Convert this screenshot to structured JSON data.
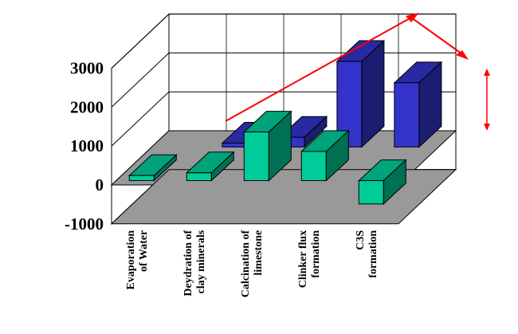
{
  "chart_data": {
    "type": "bar",
    "style": "3d-stacked",
    "categories": [
      [
        "Evaporation",
        "of Water"
      ],
      [
        "Deydration of",
        "clay minerals"
      ],
      [
        "Calcination of",
        "limestone"
      ],
      [
        "Clinker flux",
        "formation"
      ],
      [
        "C3S",
        "formation"
      ]
    ],
    "y_ticks": [
      "-1000",
      "0",
      "1000",
      "2000",
      "3000"
    ],
    "ylim": [
      -1000,
      3000
    ],
    "series": [
      {
        "values": [
          130,
          200,
          1250,
          750,
          -600
        ]
      },
      {
        "values": [
          0,
          0,
          0,
          0,
          0
        ]
      },
      {
        "values": [
          0,
          100,
          250,
          2200,
          1650
        ]
      }
    ],
    "grid": true,
    "legend": "none",
    "colors": {
      "front_series": "#00cc99",
      "middle_series": "#000000",
      "back_series": "#3333cc",
      "floor": "#999999",
      "trend_arrow": "#ff0000"
    }
  }
}
